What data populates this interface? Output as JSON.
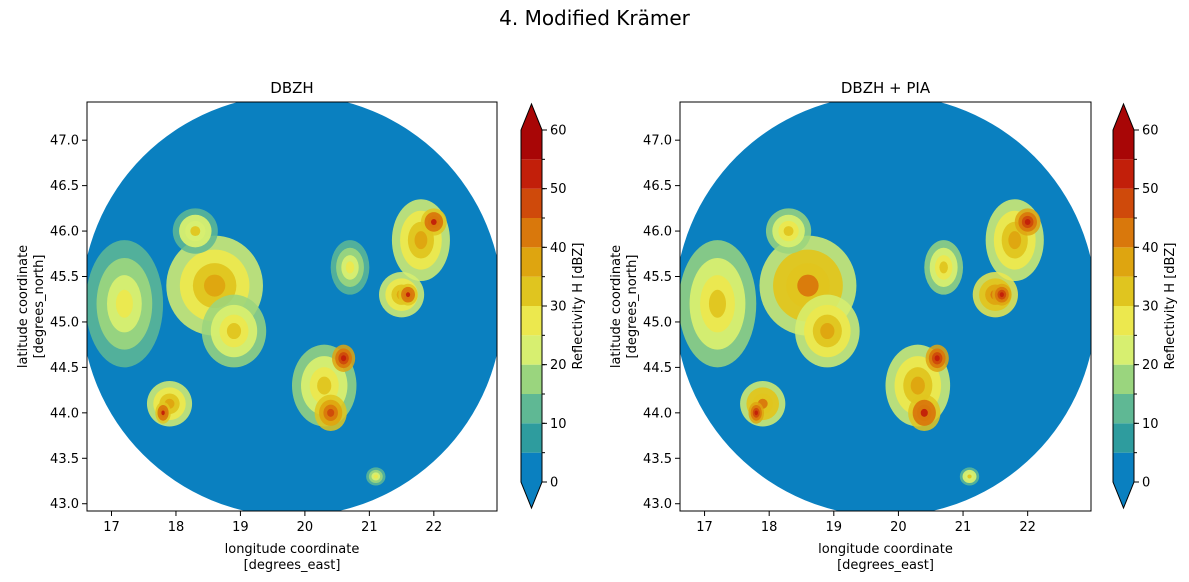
{
  "figure": {
    "title": "4. Modified Krämer"
  },
  "chart_data": [
    {
      "type": "heatmap",
      "title": "DBZH",
      "xlabel": "longitude coordinate",
      "xlabel_units": "[degrees_east]",
      "ylabel": "latitude coordinate",
      "ylabel_units": "[degrees_north]",
      "xlim": [
        16.62,
        22.98
      ],
      "ylim": [
        42.92,
        47.42
      ],
      "xticks": [
        17,
        18,
        19,
        20,
        21,
        22
      ],
      "yticks": [
        43.0,
        43.5,
        44.0,
        44.5,
        45.0,
        45.5,
        46.0,
        46.5,
        47.0
      ],
      "ytick_labels": [
        "43.0",
        "43.5",
        "44.0",
        "44.5",
        "45.0",
        "45.5",
        "46.0",
        "46.5",
        "47.0"
      ],
      "radar_center": [
        19.8,
        45.18
      ],
      "colorbar": {
        "label": "Reflectivity H [dBZ]",
        "range": [
          0,
          60
        ],
        "levels": [
          0,
          5,
          10,
          15,
          20,
          25,
          30,
          35,
          40,
          45,
          50,
          55,
          60
        ],
        "ticks": [
          0,
          10,
          20,
          30,
          40,
          50,
          60
        ],
        "colors": [
          "#0a80c0",
          "#2e9c9e",
          "#5fb894",
          "#9ad57e",
          "#d7ef70",
          "#ece84e",
          "#e0c51f",
          "#dea510",
          "#d9780c",
          "#cf4a0b",
          "#c21f0a",
          "#a80606"
        ],
        "under": "#0a80c0",
        "over": "#a80606"
      },
      "cells": [
        {
          "lon": 18.6,
          "lat": 45.4,
          "rx": 0.75,
          "ry": 0.55,
          "dbz": 30
        },
        {
          "lon": 17.2,
          "lat": 45.2,
          "rx": 0.6,
          "ry": 0.7,
          "dbz": 22
        },
        {
          "lon": 18.9,
          "lat": 44.9,
          "rx": 0.5,
          "ry": 0.4,
          "dbz": 27
        },
        {
          "lon": 20.3,
          "lat": 44.3,
          "rx": 0.5,
          "ry": 0.45,
          "dbz": 28
        },
        {
          "lon": 21.8,
          "lat": 45.9,
          "rx": 0.45,
          "ry": 0.45,
          "dbz": 30
        },
        {
          "lon": 21.5,
          "lat": 45.3,
          "rx": 0.35,
          "ry": 0.25,
          "dbz": 33
        },
        {
          "lon": 20.7,
          "lat": 45.6,
          "rx": 0.3,
          "ry": 0.3,
          "dbz": 22
        },
        {
          "lon": 17.9,
          "lat": 44.1,
          "rx": 0.35,
          "ry": 0.25,
          "dbz": 30
        },
        {
          "lon": 21.1,
          "lat": 43.3,
          "rx": 0.15,
          "ry": 0.1,
          "dbz": 22
        },
        {
          "lon": 18.3,
          "lat": 46.0,
          "rx": 0.35,
          "ry": 0.25,
          "dbz": 24
        },
        {
          "lon": 20.4,
          "lat": 44.0,
          "rx": 0.25,
          "ry": 0.2,
          "dbz": 40
        },
        {
          "lon": 20.6,
          "lat": 44.6,
          "rx": 0.18,
          "ry": 0.15,
          "dbz": 45
        },
        {
          "lon": 22.0,
          "lat": 46.1,
          "rx": 0.2,
          "ry": 0.15,
          "dbz": 44
        },
        {
          "lon": 21.6,
          "lat": 45.3,
          "rx": 0.15,
          "ry": 0.12,
          "dbz": 44
        },
        {
          "lon": 17.8,
          "lat": 44.0,
          "rx": 0.12,
          "ry": 0.12,
          "dbz": 44
        }
      ]
    },
    {
      "type": "heatmap",
      "title": "DBZH + PIA",
      "xlabel": "longitude coordinate",
      "xlabel_units": "[degrees_east]",
      "ylabel": "latitude coordinate",
      "ylabel_units": "[degrees_north]",
      "xlim": [
        16.62,
        22.98
      ],
      "ylim": [
        42.92,
        47.42
      ],
      "xticks": [
        17,
        18,
        19,
        20,
        21,
        22
      ],
      "yticks": [
        43.0,
        43.5,
        44.0,
        44.5,
        45.0,
        45.5,
        46.0,
        46.5,
        47.0
      ],
      "ytick_labels": [
        "43.0",
        "43.5",
        "44.0",
        "44.5",
        "45.0",
        "45.5",
        "46.0",
        "46.5",
        "47.0"
      ],
      "radar_center": [
        19.8,
        45.18
      ],
      "colorbar": {
        "label": "Reflectivity H [dBZ]",
        "range": [
          0,
          60
        ],
        "levels": [
          0,
          5,
          10,
          15,
          20,
          25,
          30,
          35,
          40,
          45,
          50,
          55,
          60
        ],
        "ticks": [
          0,
          10,
          20,
          30,
          40,
          50,
          60
        ],
        "colors": [
          "#0a80c0",
          "#2e9c9e",
          "#5fb894",
          "#9ad57e",
          "#d7ef70",
          "#ece84e",
          "#e0c51f",
          "#dea510",
          "#d9780c",
          "#cf4a0b",
          "#c21f0a",
          "#a80606"
        ],
        "under": "#0a80c0",
        "over": "#a80606"
      },
      "cells": [
        {
          "lon": 18.6,
          "lat": 45.4,
          "rx": 0.75,
          "ry": 0.55,
          "dbz": 34
        },
        {
          "lon": 17.2,
          "lat": 45.2,
          "rx": 0.6,
          "ry": 0.7,
          "dbz": 27
        },
        {
          "lon": 18.9,
          "lat": 44.9,
          "rx": 0.5,
          "ry": 0.4,
          "dbz": 31
        },
        {
          "lon": 20.3,
          "lat": 44.3,
          "rx": 0.5,
          "ry": 0.45,
          "dbz": 31
        },
        {
          "lon": 21.8,
          "lat": 45.9,
          "rx": 0.45,
          "ry": 0.45,
          "dbz": 32
        },
        {
          "lon": 21.5,
          "lat": 45.3,
          "rx": 0.35,
          "ry": 0.25,
          "dbz": 36
        },
        {
          "lon": 20.7,
          "lat": 45.6,
          "rx": 0.3,
          "ry": 0.3,
          "dbz": 25
        },
        {
          "lon": 17.9,
          "lat": 44.1,
          "rx": 0.35,
          "ry": 0.25,
          "dbz": 34
        },
        {
          "lon": 21.1,
          "lat": 43.3,
          "rx": 0.15,
          "ry": 0.1,
          "dbz": 24
        },
        {
          "lon": 18.3,
          "lat": 46.0,
          "rx": 0.35,
          "ry": 0.25,
          "dbz": 28
        },
        {
          "lon": 20.4,
          "lat": 44.0,
          "rx": 0.25,
          "ry": 0.2,
          "dbz": 44
        },
        {
          "lon": 20.6,
          "lat": 44.6,
          "rx": 0.18,
          "ry": 0.15,
          "dbz": 48
        },
        {
          "lon": 22.0,
          "lat": 46.1,
          "rx": 0.2,
          "ry": 0.15,
          "dbz": 48
        },
        {
          "lon": 21.6,
          "lat": 45.3,
          "rx": 0.15,
          "ry": 0.12,
          "dbz": 47
        },
        {
          "lon": 17.8,
          "lat": 44.0,
          "rx": 0.12,
          "ry": 0.12,
          "dbz": 47
        }
      ]
    }
  ]
}
